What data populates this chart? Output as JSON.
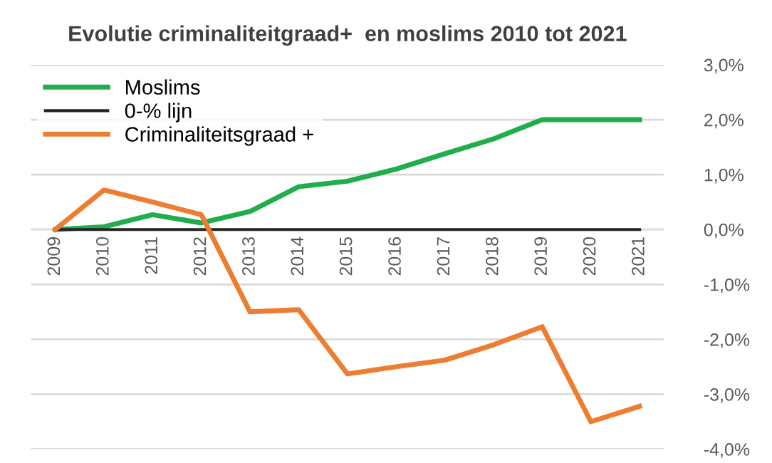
{
  "chart_data": {
    "type": "line",
    "title": "Evolutie criminaliteitgraad+  en moslims 2010 tot 2021",
    "categories": [
      "2009",
      "2010",
      "2011",
      "2012",
      "2013",
      "2014",
      "2015",
      "2016",
      "2017",
      "2018",
      "2019",
      "2020",
      "2021"
    ],
    "series": [
      {
        "name": "Moslims",
        "color": "#1fae4b",
        "values": [
          0,
          0.05,
          0.27,
          0.12,
          0.33,
          0.78,
          0.88,
          1.1,
          1.38,
          1.65,
          2.0,
          2.0,
          2.0
        ]
      },
      {
        "name": "0-% lijn",
        "color": "#262626",
        "values": [
          0,
          0,
          0,
          0,
          0,
          0,
          0,
          0,
          0,
          0,
          0,
          0,
          0
        ]
      },
      {
        "name": "Criminaliteitsgraad +",
        "color": "#ed7d31",
        "values": [
          0,
          0.72,
          0.5,
          0.27,
          -1.5,
          -1.46,
          -2.63,
          -2.5,
          -2.38,
          -2.1,
          -1.77,
          -3.5,
          -3.22
        ]
      }
    ],
    "ylim": [
      -4,
      3
    ],
    "yticks": [
      {
        "value": -4,
        "label": "-4,0%"
      },
      {
        "value": -3,
        "label": "-3,0%"
      },
      {
        "value": -2,
        "label": "-2,0%"
      },
      {
        "value": -1,
        "label": "-1,0%"
      },
      {
        "value": 0,
        "label": "0,0%"
      },
      {
        "value": 1,
        "label": "1,0%"
      },
      {
        "value": 2,
        "label": "2,0%"
      },
      {
        "value": 3,
        "label": "3,0%"
      }
    ],
    "grid": "y",
    "legend": "top left",
    "marker": "none",
    "line_style": "solid"
  }
}
